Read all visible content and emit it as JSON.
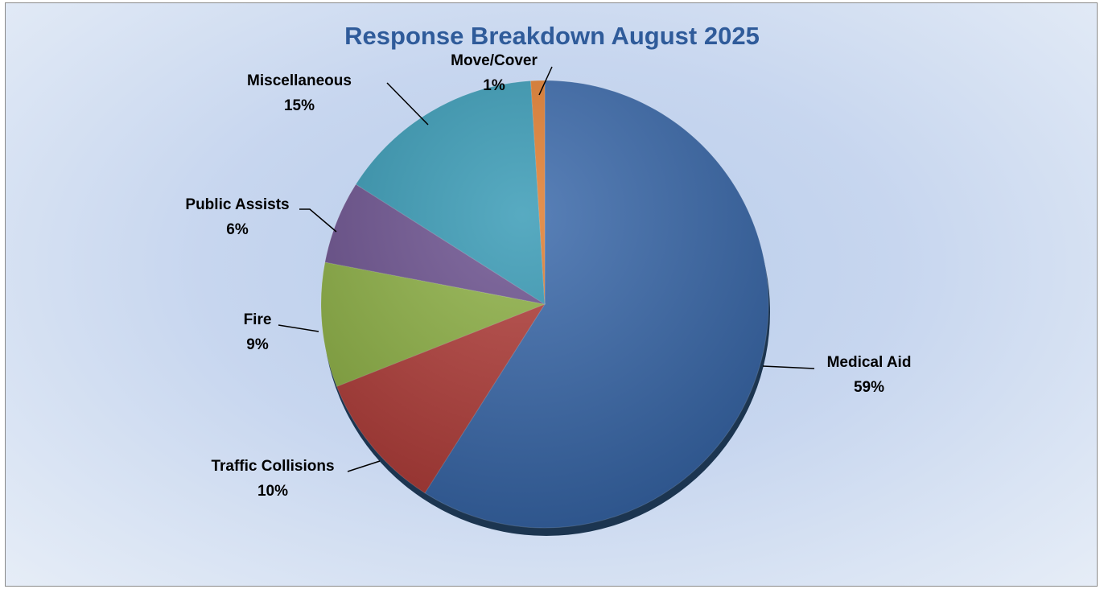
{
  "chart_data": {
    "type": "pie",
    "title": "Response Breakdown August 2025",
    "slices": [
      {
        "name": "Medical Aid",
        "value": 59,
        "label": "59%",
        "color": "#3565a8"
      },
      {
        "name": "Traffic Collisions",
        "value": 10,
        "label": "10%",
        "color": "#b03a36"
      },
      {
        "name": "Fire",
        "value": 9,
        "label": "9%",
        "color": "#8cb042"
      },
      {
        "name": "Public Assists",
        "value": 6,
        "label": "6%",
        "color": "#6a4f8e"
      },
      {
        "name": "Miscellaneous",
        "value": 15,
        "label": "15%",
        "color": "#3398b4"
      },
      {
        "name": "Move/Cover",
        "value": 1,
        "label": "1%",
        "color": "#e07a2a"
      }
    ],
    "legend": "none"
  }
}
